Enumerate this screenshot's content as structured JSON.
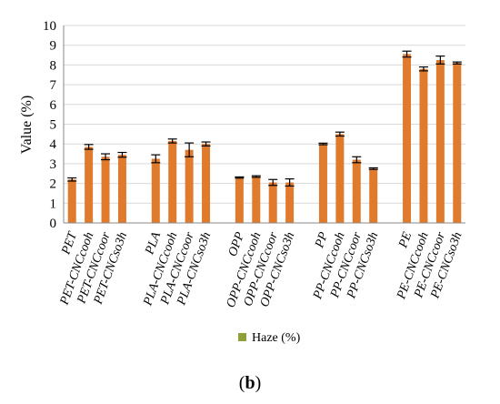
{
  "chart_data": {
    "type": "bar",
    "ylabel": "Value (%)",
    "ylim": [
      0,
      10
    ],
    "yticks": [
      0,
      1,
      2,
      3,
      4,
      5,
      6,
      7,
      8,
      9,
      10
    ],
    "grid": true,
    "legend_position": "bottom",
    "series": [
      {
        "name": "Haze (%)",
        "color": "#E07B2E",
        "legend_color": "#8DA03A",
        "groups": [
          {
            "categories": [
              "PET",
              "PET-CNCcooh",
              "PET-CNCcoor",
              "PET-CNCso3h"
            ],
            "values": [
              2.2,
              3.85,
              3.35,
              3.45
            ],
            "errors": [
              0.08,
              0.12,
              0.15,
              0.12
            ]
          },
          {
            "categories": [
              "PLA",
              "PLA-CNCcooh",
              "PLA-CNCcoor",
              "PLA-CNCso3h"
            ],
            "values": [
              3.25,
              4.15,
              3.7,
              4.0
            ],
            "errors": [
              0.2,
              0.1,
              0.35,
              0.1
            ]
          },
          {
            "categories": [
              "OPP",
              "OPP-CNCcooh",
              "OPP-CNCcoor",
              "OPP-CNCso3h"
            ],
            "values": [
              2.3,
              2.35,
              2.05,
              2.05
            ],
            "errors": [
              0.03,
              0.04,
              0.15,
              0.18
            ]
          },
          {
            "categories": [
              "PP",
              "PP-CNCcooh",
              "PP-CNCcoor",
              "PP-CNCso3h"
            ],
            "values": [
              4.0,
              4.5,
              3.2,
              2.75
            ],
            "errors": [
              0.04,
              0.1,
              0.15,
              0.04
            ]
          },
          {
            "categories": [
              "PE",
              "PE-CNCcooh",
              "PE-CNCcoor",
              "PE-CNCso3h"
            ],
            "values": [
              8.55,
              7.8,
              8.25,
              8.1
            ],
            "errors": [
              0.15,
              0.1,
              0.2,
              0.05
            ]
          }
        ]
      }
    ]
  },
  "caption": {
    "open": "(",
    "letter": "b",
    "close": ")"
  }
}
